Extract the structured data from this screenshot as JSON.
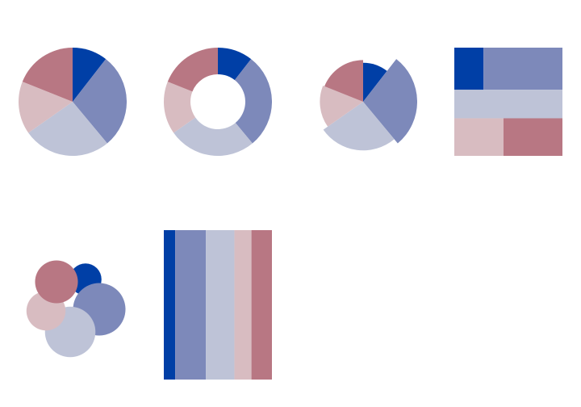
{
  "palette": [
    "#003fa6",
    "#7d89ba",
    "#bec3d7",
    "#d8bcc1",
    "#b87783"
  ],
  "chart_data": [
    {
      "type": "pie",
      "variant": "pie",
      "values": [
        10,
        27,
        25,
        15,
        18
      ]
    },
    {
      "type": "pie",
      "variant": "donut",
      "values": [
        10,
        27,
        25,
        15,
        18
      ]
    },
    {
      "type": "pie",
      "variant": "polar-area",
      "values": [
        10,
        27,
        25,
        15,
        18
      ],
      "radii": [
        0.72,
        1.0,
        0.9,
        0.8,
        0.77
      ]
    },
    {
      "type": "treemap",
      "values": [
        10,
        27,
        25,
        15,
        18
      ]
    },
    {
      "type": "bubble",
      "values": [
        10,
        27,
        25,
        15,
        18
      ]
    },
    {
      "type": "bar",
      "variant": "stacked-100",
      "values": [
        10,
        27,
        25,
        15,
        18
      ]
    }
  ]
}
